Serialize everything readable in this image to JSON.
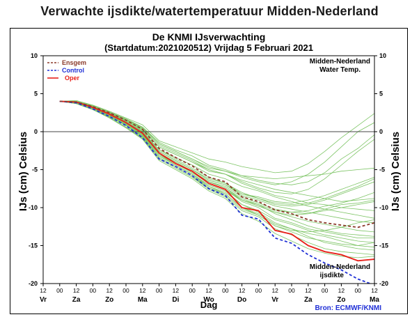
{
  "page": {
    "title": "Verwachte ijsdikte/watertemperatuur Midden-Nederland"
  },
  "chart_data": {
    "type": "line",
    "title": "De KNMI IJsverwachting",
    "subtitle": "(Startdatum:2021020512)  Vrijdag  5 Februari 2021",
    "ylabel_left": "IJs (cm)  Celsius",
    "ylabel_right": "IJs (cm)  Celsius",
    "xlabel": "Dag",
    "source": "Bron: ECMWF/KNMI",
    "annotation_top": [
      "Midden-Nederland",
      "Water Temp."
    ],
    "annotation_bottom": [
      "Midden-Nederland",
      "ijsdikte"
    ],
    "ylim": [
      -20,
      10
    ],
    "yticks": [
      10,
      5,
      0,
      -5,
      -10,
      -15,
      -20
    ],
    "xlim": [
      0,
      20
    ],
    "hour_ticks": [
      "12",
      "00",
      "12",
      "00",
      "12",
      "00",
      "12",
      "00",
      "12",
      "00",
      "12",
      "00",
      "12",
      "00",
      "12",
      "00",
      "12",
      "00",
      "12",
      "00",
      "12"
    ],
    "day_labels": [
      {
        "label": "Vr",
        "x": 0
      },
      {
        "label": "Za",
        "x": 2
      },
      {
        "label": "Zo",
        "x": 4
      },
      {
        "label": "Ma",
        "x": 6
      },
      {
        "label": "Di",
        "x": 8
      },
      {
        "label": "Wo",
        "x": 10
      },
      {
        "label": "Do",
        "x": 12
      },
      {
        "label": "Vr",
        "x": 14
      },
      {
        "label": "Za",
        "x": 16
      },
      {
        "label": "Zo",
        "x": 18
      },
      {
        "label": "Ma",
        "x": 20
      }
    ],
    "legend": {
      "position": "top-left",
      "entries": [
        {
          "name": "Ensgem",
          "color": "#8b3a2a",
          "style": "dashed"
        },
        {
          "name": "Control",
          "color": "#1f2fd6",
          "style": "dashed"
        },
        {
          "name": "Oper",
          "color": "#e8201a",
          "style": "solid"
        }
      ]
    },
    "colors": {
      "members": "#7cc464",
      "ensgem": "#8b3a2a",
      "control": "#1f2fd6",
      "oper": "#e8201a",
      "zero_line": "#444444"
    },
    "x": [
      1,
      2,
      3,
      4,
      5,
      6,
      7,
      8,
      9,
      10,
      11,
      12,
      13,
      14,
      15,
      16,
      17,
      18,
      19,
      20
    ],
    "series": [
      {
        "name": "Oper",
        "color": "#e8201a",
        "values": [
          4.0,
          3.9,
          3.2,
          2.3,
          1.2,
          -0.2,
          -2.8,
          -4.2,
          -5.2,
          -6.8,
          -7.6,
          -10.0,
          -10.4,
          -13.0,
          -13.5,
          -15.0,
          -15.8,
          -16.2,
          -17.0,
          -16.8
        ]
      },
      {
        "name": "Control",
        "color": "#1f2fd6",
        "values": [
          4.0,
          3.8,
          3.0,
          2.0,
          0.8,
          -0.8,
          -3.6,
          -4.6,
          -5.8,
          -7.5,
          -8.4,
          -11.0,
          -11.5,
          -14.0,
          -14.7,
          -16.2,
          -17.3,
          -18.2,
          -19.4,
          -20.2
        ]
      },
      {
        "name": "Ensgem",
        "color": "#8b3a2a",
        "values": [
          4.0,
          3.9,
          3.3,
          2.5,
          1.5,
          0.3,
          -2.2,
          -3.4,
          -4.5,
          -6.0,
          -6.6,
          -8.6,
          -9.2,
          -10.3,
          -10.8,
          -11.6,
          -12.0,
          -12.3,
          -12.6,
          -12.0
        ]
      }
    ],
    "members": [
      [
        4.0,
        4.0,
        3.4,
        2.6,
        1.6,
        0.5,
        -1.6,
        -2.6,
        -3.6,
        -4.6,
        -5.2,
        -6.0,
        -6.6,
        -7.0,
        -6.6,
        -5.6,
        -4.0,
        -2.0,
        0.0,
        1.2
      ],
      [
        4.0,
        4.1,
        3.5,
        2.7,
        1.8,
        0.9,
        -1.2,
        -2.0,
        -2.8,
        -3.6,
        -4.0,
        -4.6,
        -5.0,
        -5.4,
        -5.2,
        -4.2,
        -2.6,
        -0.8,
        0.8,
        2.4
      ],
      [
        4.0,
        3.9,
        3.3,
        2.5,
        1.4,
        0.2,
        -2.0,
        -3.0,
        -4.0,
        -5.0,
        -5.6,
        -6.6,
        -7.4,
        -8.0,
        -8.2,
        -7.6,
        -6.2,
        -4.4,
        -2.6,
        -1.0
      ],
      [
        4.0,
        4.0,
        3.4,
        2.6,
        1.6,
        0.6,
        -1.4,
        -2.4,
        -3.2,
        -4.4,
        -5.0,
        -5.8,
        -6.4,
        -6.8,
        -7.0,
        -6.6,
        -5.4,
        -3.6,
        -2.2,
        -0.4
      ],
      [
        4.0,
        3.9,
        3.3,
        2.4,
        1.3,
        0.1,
        -2.4,
        -3.6,
        -4.8,
        -6.0,
        -6.8,
        -8.0,
        -8.8,
        -9.6,
        -9.8,
        -9.6,
        -9.0,
        -8.2,
        -7.4,
        -6.6
      ],
      [
        4.0,
        3.8,
        3.2,
        2.3,
        1.1,
        -0.2,
        -2.8,
        -4.0,
        -5.2,
        -6.6,
        -7.2,
        -8.6,
        -9.4,
        -10.2,
        -10.6,
        -10.4,
        -9.8,
        -9.4,
        -8.8,
        -8.0
      ],
      [
        4.0,
        3.9,
        3.3,
        2.5,
        1.4,
        0.3,
        -2.0,
        -3.0,
        -4.0,
        -5.2,
        -5.6,
        -6.4,
        -7.0,
        -7.6,
        -8.0,
        -8.4,
        -8.8,
        -9.2,
        -9.0,
        -8.8
      ],
      [
        4.0,
        3.8,
        3.1,
        2.1,
        1.0,
        -0.4,
        -3.0,
        -4.4,
        -5.6,
        -7.0,
        -7.8,
        -9.0,
        -9.8,
        -10.6,
        -11.0,
        -10.8,
        -10.2,
        -9.6,
        -9.4,
        -9.0
      ],
      [
        4.0,
        4.0,
        3.3,
        2.4,
        1.3,
        0.0,
        -2.4,
        -3.4,
        -4.4,
        -5.6,
        -6.2,
        -7.2,
        -7.8,
        -8.6,
        -9.2,
        -9.8,
        -10.2,
        -10.6,
        -11.0,
        -11.4
      ],
      [
        4.0,
        3.9,
        3.2,
        2.3,
        1.2,
        -0.1,
        -2.6,
        -3.8,
        -5.0,
        -6.4,
        -7.0,
        -8.4,
        -9.0,
        -9.8,
        -10.2,
        -10.6,
        -11.0,
        -11.4,
        -11.8,
        -12.0
      ],
      [
        4.0,
        3.8,
        3.1,
        2.2,
        1.0,
        -0.4,
        -3.0,
        -4.2,
        -5.4,
        -6.8,
        -7.6,
        -9.0,
        -9.8,
        -10.6,
        -11.2,
        -11.8,
        -12.2,
        -12.6,
        -13.0,
        -13.2
      ],
      [
        4.0,
        3.9,
        3.2,
        2.3,
        1.2,
        -0.2,
        -2.8,
        -4.0,
        -5.2,
        -6.6,
        -7.4,
        -8.8,
        -9.6,
        -10.8,
        -11.6,
        -12.4,
        -13.0,
        -13.4,
        -13.6,
        -13.8
      ],
      [
        4.0,
        3.8,
        3.0,
        2.0,
        0.8,
        -0.7,
        -3.4,
        -4.6,
        -5.8,
        -7.2,
        -8.0,
        -9.6,
        -10.4,
        -11.6,
        -12.2,
        -13.0,
        -13.6,
        -14.0,
        -14.4,
        -14.6
      ],
      [
        4.0,
        3.8,
        3.0,
        2.1,
        0.9,
        -0.6,
        -3.2,
        -4.4,
        -5.6,
        -7.0,
        -7.8,
        -9.6,
        -10.6,
        -12.0,
        -12.8,
        -13.8,
        -14.6,
        -15.0,
        -15.4,
        -15.6
      ],
      [
        4.0,
        3.7,
        2.9,
        1.9,
        0.6,
        -0.9,
        -3.6,
        -4.8,
        -6.0,
        -7.6,
        -8.6,
        -10.4,
        -11.2,
        -12.8,
        -13.6,
        -14.6,
        -15.4,
        -15.8,
        -16.0,
        -16.2
      ],
      [
        4.0,
        3.7,
        2.9,
        1.8,
        0.5,
        -1.0,
        -3.8,
        -5.0,
        -6.2,
        -7.8,
        -8.8,
        -10.8,
        -11.8,
        -13.4,
        -14.4,
        -15.4,
        -16.0,
        -16.4,
        -16.6,
        -16.4
      ],
      [
        4.0,
        3.9,
        3.2,
        2.2,
        1.0,
        -0.3,
        -3.0,
        -4.2,
        -5.4,
        -6.8,
        -7.6,
        -9.2,
        -10.0,
        -11.4,
        -12.0,
        -12.8,
        -13.2,
        -13.6,
        -14.0,
        -14.0
      ],
      [
        4.0,
        3.9,
        3.3,
        2.4,
        1.3,
        0.0,
        -2.6,
        -3.8,
        -5.0,
        -6.2,
        -6.8,
        -8.2,
        -8.6,
        -9.2,
        -9.4,
        -9.0,
        -8.4,
        -7.6,
        -6.8,
        -6.0
      ],
      [
        4.0,
        4.0,
        3.4,
        2.6,
        1.7,
        0.6,
        -1.6,
        -2.6,
        -3.6,
        -4.8,
        -5.2,
        -5.8,
        -6.0,
        -6.2,
        -6.0,
        -5.8,
        -5.6,
        -5.2,
        -5.0,
        -4.8
      ],
      [
        4.0,
        3.8,
        3.1,
        2.1,
        0.9,
        -0.5,
        -3.2,
        -4.4,
        -5.6,
        -7.2,
        -8.2,
        -10.0,
        -11.0,
        -12.4,
        -13.0,
        -13.2,
        -13.0,
        -12.6,
        -12.0,
        -11.6
      ],
      [
        4.0,
        3.9,
        3.2,
        2.3,
        1.1,
        -0.2,
        -2.8,
        -4.0,
        -5.2,
        -6.6,
        -7.4,
        -9.0,
        -9.6,
        -10.4,
        -10.6,
        -10.8,
        -10.4,
        -10.0,
        -9.6,
        -9.2
      ],
      [
        4.0,
        3.7,
        2.9,
        1.9,
        0.6,
        -0.8,
        -3.6,
        -4.8,
        -6.0,
        -7.4,
        -8.4,
        -10.2,
        -11.0,
        -12.4,
        -13.2,
        -14.0,
        -14.4,
        -14.8,
        -15.0,
        -14.6
      ],
      [
        4.0,
        4.0,
        3.4,
        2.5,
        1.5,
        0.4,
        -1.8,
        -2.8,
        -3.8,
        -5.0,
        -5.6,
        -6.8,
        -7.6,
        -8.4,
        -8.8,
        -9.4,
        -9.6,
        -10.0,
        -10.2,
        -10.4
      ],
      [
        4.0,
        3.8,
        3.0,
        2.0,
        0.8,
        -0.6,
        -3.4,
        -4.6,
        -5.8,
        -7.4,
        -8.2,
        -10.0,
        -10.8,
        -12.2,
        -12.8,
        -13.4,
        -13.8,
        -14.4,
        -15.0,
        -15.2
      ],
      [
        4.0,
        3.9,
        3.2,
        2.3,
        1.2,
        -0.1,
        -2.6,
        -3.8,
        -5.0,
        -6.4,
        -7.0,
        -8.2,
        -8.8,
        -9.4,
        -9.6,
        -9.4,
        -8.8,
        -8.0,
        -7.2,
        -6.2
      ]
    ]
  }
}
